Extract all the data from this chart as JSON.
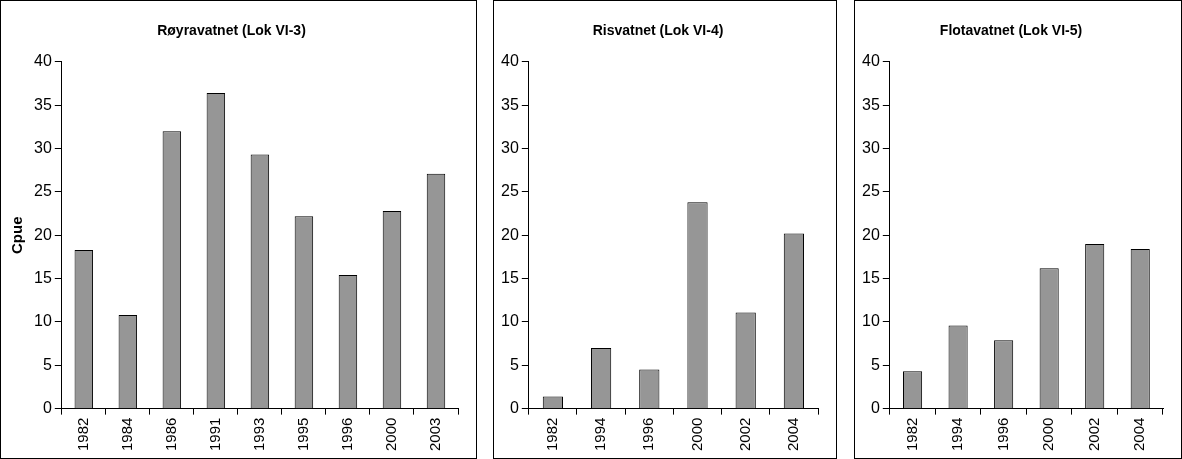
{
  "chart_data": [
    {
      "type": "bar",
      "title": "Røyravatnet (Lok VI-3)",
      "ylabel": "Cpue",
      "categories": [
        "1982",
        "1984",
        "1986",
        "1991",
        "1993",
        "1995",
        "1996",
        "2000",
        "2003"
      ],
      "values": [
        18.3,
        10.8,
        32.0,
        36.4,
        29.3,
        22.2,
        15.4,
        22.8,
        27.1
      ],
      "color": "#969696",
      "ylim": [
        0,
        40
      ],
      "yticks": [
        0,
        5,
        10,
        15,
        20,
        25,
        30,
        35,
        40
      ],
      "grid": false
    },
    {
      "type": "bar",
      "title": "Risvatnet (Lok VI-4)",
      "categories": [
        "1982",
        "1994",
        "1996",
        "2000",
        "2002",
        "2004"
      ],
      "values": [
        1.4,
        7.0,
        4.5,
        23.8,
        11.1,
        20.2
      ],
      "color": "#969696",
      "ylim": [
        0,
        40
      ],
      "yticks": [
        0,
        5,
        10,
        15,
        20,
        25,
        30,
        35,
        40
      ],
      "grid": false
    },
    {
      "type": "bar",
      "title": "Flotavatnet (Lok VI-5)",
      "categories": [
        "1982",
        "1994",
        "1996",
        "2000",
        "2002",
        "2004"
      ],
      "values": [
        4.3,
        9.6,
        7.9,
        16.2,
        19.0,
        18.4
      ],
      "color": "#969696",
      "ylim": [
        0,
        40
      ],
      "yticks": [
        0,
        5,
        10,
        15,
        20,
        25,
        30,
        35,
        40
      ],
      "grid": false
    }
  ]
}
